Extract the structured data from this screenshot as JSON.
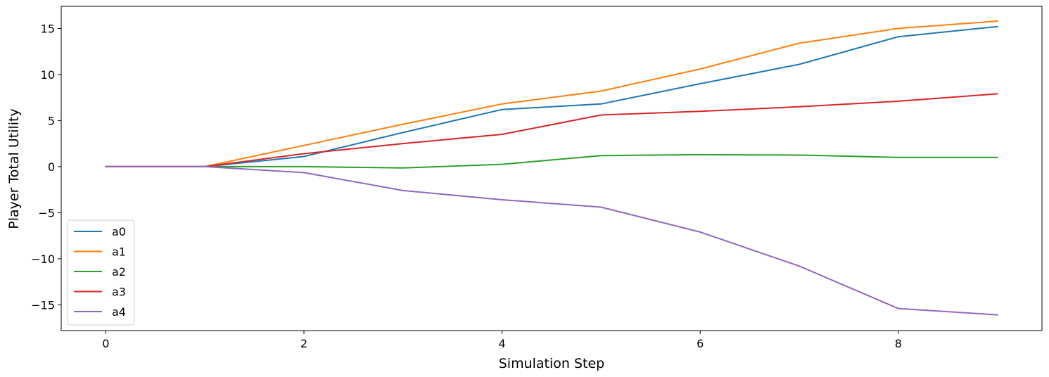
{
  "chart_data": {
    "type": "line",
    "title": "",
    "xlabel": "Simulation Step",
    "ylabel": "Player Total Utility",
    "x": [
      0,
      1,
      2,
      3,
      4,
      5,
      6,
      7,
      8,
      9
    ],
    "xlim": [
      -0.45,
      9.45
    ],
    "ylim": [
      -17.8,
      17.4
    ],
    "xticks": [
      0,
      2,
      4,
      6,
      8
    ],
    "yticks": [
      15,
      10,
      5,
      0,
      -5,
      -10,
      -15
    ],
    "ytick_labels": [
      "15",
      "10",
      "5",
      "0",
      "−5",
      "−10",
      "−15"
    ],
    "grid": false,
    "legend_position": "lower-left",
    "series": [
      {
        "name": "a0",
        "color": "#1f77b4",
        "values": [
          0,
          0,
          1.1,
          3.7,
          6.2,
          6.8,
          9.0,
          11.1,
          14.1,
          15.2
        ]
      },
      {
        "name": "a1",
        "color": "#ff7f0e",
        "values": [
          0,
          0,
          2.3,
          4.6,
          6.8,
          8.2,
          10.6,
          13.4,
          15.0,
          15.8
        ]
      },
      {
        "name": "a2",
        "color": "#2ca02c",
        "values": [
          0,
          0,
          0.0,
          -0.15,
          0.25,
          1.2,
          1.3,
          1.25,
          1.0,
          1.0
        ]
      },
      {
        "name": "a3",
        "color": "#d62728",
        "values": [
          0,
          0,
          1.4,
          2.5,
          3.5,
          5.6,
          6.0,
          6.5,
          7.1,
          7.9
        ]
      },
      {
        "name": "a4",
        "color": "#9467bd",
        "values": [
          0,
          0,
          -0.65,
          -2.6,
          -3.6,
          -4.4,
          -7.1,
          -10.8,
          -15.4,
          -16.1
        ]
      }
    ]
  }
}
